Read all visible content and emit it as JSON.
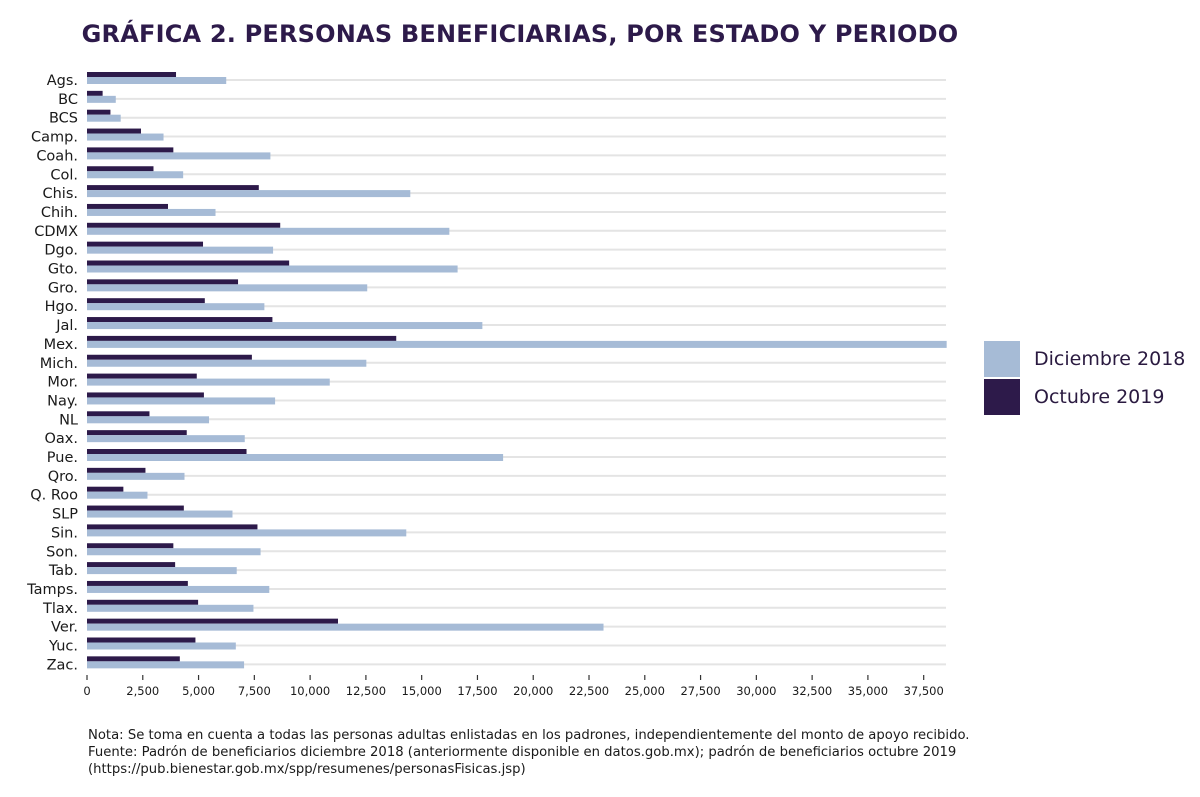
{
  "chart_data": {
    "type": "bar",
    "orientation": "horizontal",
    "title": "GRÁFICA 2. PERSONAS BENEFICIARIAS, POR ESTADO Y PERIODO",
    "xlabel": "",
    "ylabel": "",
    "xlim": [
      0,
      38500
    ],
    "grid": true,
    "legend_position": "right",
    "x_ticks": [
      0,
      2500,
      5000,
      7500,
      10000,
      12500,
      15000,
      17500,
      20000,
      22500,
      25000,
      27500,
      30000,
      32500,
      35000,
      37500
    ],
    "x_tick_labels": [
      "0",
      "2,500",
      "5,000",
      "7,500",
      "10,000",
      "12,500",
      "15,000",
      "17,500",
      "20,000",
      "22,500",
      "25,000",
      "27,500",
      "30,000",
      "32,500",
      "35,000",
      "37,500"
    ],
    "categories": [
      "Ags.",
      "BC",
      "BCS",
      "Camp.",
      "Coah.",
      "Col.",
      "Chis.",
      "Chih.",
      "CDMX",
      "Dgo.",
      "Gto.",
      "Gro.",
      "Hgo.",
      "Jal.",
      "Mex.",
      "Mich.",
      "Mor.",
      "Nay.",
      "NL",
      "Oax.",
      "Pue.",
      "Qro.",
      "Q. Roo",
      "SLP",
      "Sin.",
      "Son.",
      "Tab.",
      "Tamps.",
      "Tlax.",
      "Ver.",
      "Yuc.",
      "Zac."
    ],
    "series": [
      {
        "name": "Diciembre 2018",
        "color": "#a6bbd6",
        "values": [
          6240,
          1290,
          1510,
          3430,
          8220,
          4310,
          14490,
          5760,
          16240,
          8340,
          16610,
          12560,
          7950,
          17720,
          38530,
          12520,
          10880,
          8430,
          5470,
          7070,
          18650,
          4370,
          2710,
          6520,
          14310,
          7780,
          6710,
          8170,
          7460,
          23150,
          6670,
          7040
        ]
      },
      {
        "name": "Octubre 2019",
        "color": "#2d1a4a",
        "values": [
          3990,
          700,
          1050,
          2420,
          3870,
          2980,
          7700,
          3630,
          8660,
          5200,
          9060,
          6770,
          5280,
          8310,
          13860,
          7390,
          4920,
          5240,
          2800,
          4470,
          7150,
          2620,
          1630,
          4340,
          7640,
          3870,
          3950,
          4520,
          4980,
          11250,
          4860,
          4160
        ]
      }
    ]
  },
  "notes": {
    "line1": "Nota: Se toma en cuenta a todas las personas adultas enlistadas en los padrones, independientemente del monto de apoyo recibido.",
    "line2": "Fuente: Padrón de beneficiarios diciembre 2018 (anteriormente disponible en datos.gob.mx); padrón de beneficiarios octubre 2019",
    "line3": "(https://pub.bienestar.gob.mx/spp/resumenes/personasFisicas.jsp)"
  }
}
